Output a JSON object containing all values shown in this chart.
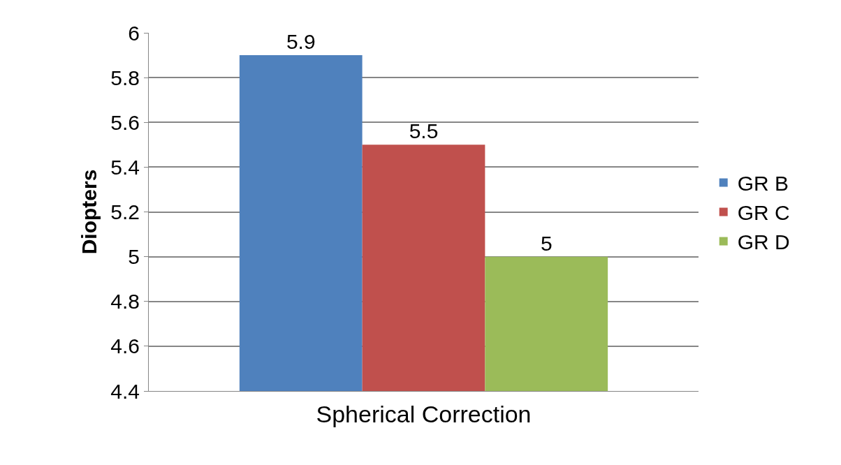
{
  "chart_data": {
    "type": "bar",
    "xlabel": "Spherical Correction",
    "ylabel": "Diopters",
    "categories": [
      null
    ],
    "series": [
      {
        "name": "GR B",
        "color": "#4f81bd",
        "values": [
          5.9
        ]
      },
      {
        "name": "GR C",
        "color": "#c0504d",
        "values": [
          5.5
        ]
      },
      {
        "name": "GR D",
        "color": "#9bbb59",
        "values": [
          5
        ]
      }
    ],
    "ylim": [
      4.4,
      6
    ],
    "yticks": [
      4.4,
      4.6,
      4.8,
      5,
      5.2,
      5.4,
      5.6,
      5.8,
      6
    ],
    "grid": "y",
    "legend": "right",
    "data_labels": true
  }
}
